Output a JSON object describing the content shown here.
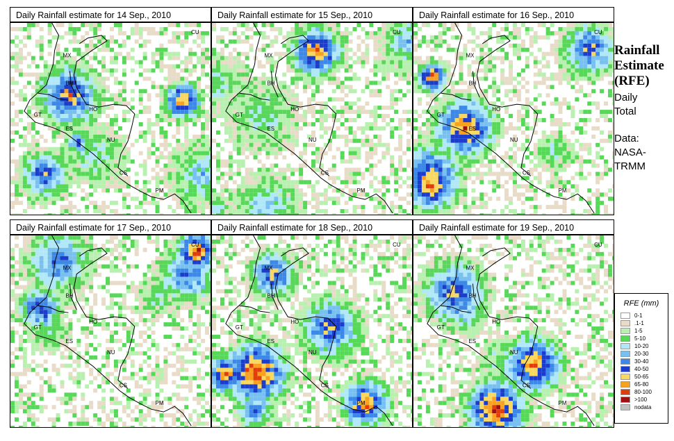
{
  "panels": [
    {
      "title": "Daily Rainfall estimate for  14 Sep., 2010",
      "seed": 14
    },
    {
      "title": "Daily Rainfall estimate for  15 Sep., 2010",
      "seed": 15
    },
    {
      "title": "Daily Rainfall estimate for  16 Sep., 2010",
      "seed": 16
    },
    {
      "title": "Daily Rainfall estimate for  17 Sep., 2010",
      "seed": 17
    },
    {
      "title": "Daily Rainfall estimate for  18 Sep., 2010",
      "seed": 18
    },
    {
      "title": "Daily Rainfall estimate for  19 Sep., 2010",
      "seed": 19
    }
  ],
  "map_labels": [
    "CU",
    "MX",
    "BH",
    "GT",
    "HO",
    "ES",
    "NU",
    "CS",
    "PM"
  ],
  "side": {
    "title_lines": [
      "Rainfall",
      "Estimate",
      "(RFE)"
    ],
    "daily_lines": [
      "Daily",
      "Total"
    ],
    "data_lines": [
      "Data:",
      "NASA-",
      "TRMM"
    ]
  },
  "legend": {
    "title": "RFE (mm)",
    "items": [
      {
        "label": "0-1",
        "color": "#ffffff"
      },
      {
        "label": ".1-1",
        "color": "#e8dcc8"
      },
      {
        "label": "1-5",
        "color": "#b8f0b0"
      },
      {
        "label": "5-10",
        "color": "#58d858"
      },
      {
        "label": "10-20",
        "color": "#b0e8f8"
      },
      {
        "label": "20-30",
        "color": "#78c0f0"
      },
      {
        "label": "30-40",
        "color": "#3c88e8"
      },
      {
        "label": "40-50",
        "color": "#1c3ccc"
      },
      {
        "label": "50-65",
        "color": "#f8d860"
      },
      {
        "label": "65-80",
        "color": "#f8a020"
      },
      {
        "label": "80-100",
        "color": "#e03c0c"
      },
      {
        "label": ">100",
        "color": "#a01010"
      },
      {
        "label": "nodata",
        "color": "#c0c0c0"
      }
    ]
  }
}
